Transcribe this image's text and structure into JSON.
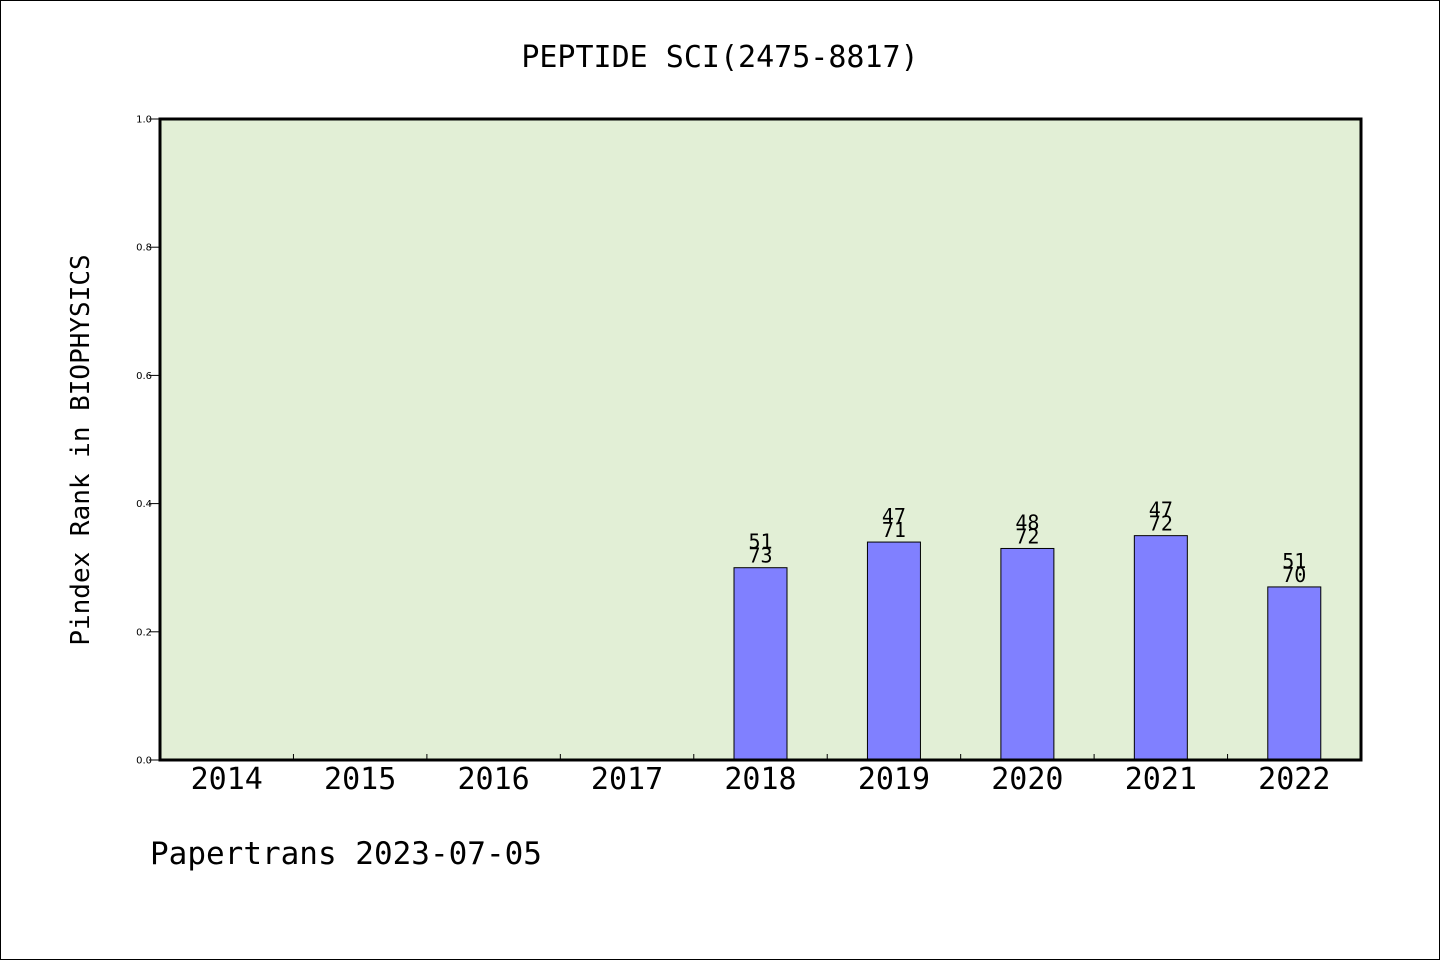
{
  "chart_data": {
    "type": "bar",
    "title": "PEPTIDE SCI(2475-8817)",
    "xlabel": "",
    "ylabel": "Pindex Rank in BIOPHYSICS",
    "categories": [
      "2014",
      "2015",
      "2016",
      "2017",
      "2018",
      "2019",
      "2020",
      "2021",
      "2022"
    ],
    "values": [
      null,
      null,
      null,
      null,
      0.3,
      0.34,
      0.33,
      0.35,
      0.27
    ],
    "labels_rank": [
      "",
      "",
      "",
      "",
      "51",
      "47",
      "48",
      "47",
      "51"
    ],
    "labels_total": [
      "",
      "",
      "",
      "",
      "73",
      "71",
      "72",
      "72",
      "70"
    ],
    "ylim": [
      0,
      1.0
    ],
    "yticks": [
      "0.0",
      "0.2",
      "0.4",
      "0.6",
      "0.8",
      "1.0"
    ],
    "grid": false,
    "colors": {
      "plot_bg": "#e2efd6",
      "bar": "#8080ff"
    }
  },
  "footer": {
    "text": "Papertrans 2023-07-05"
  }
}
